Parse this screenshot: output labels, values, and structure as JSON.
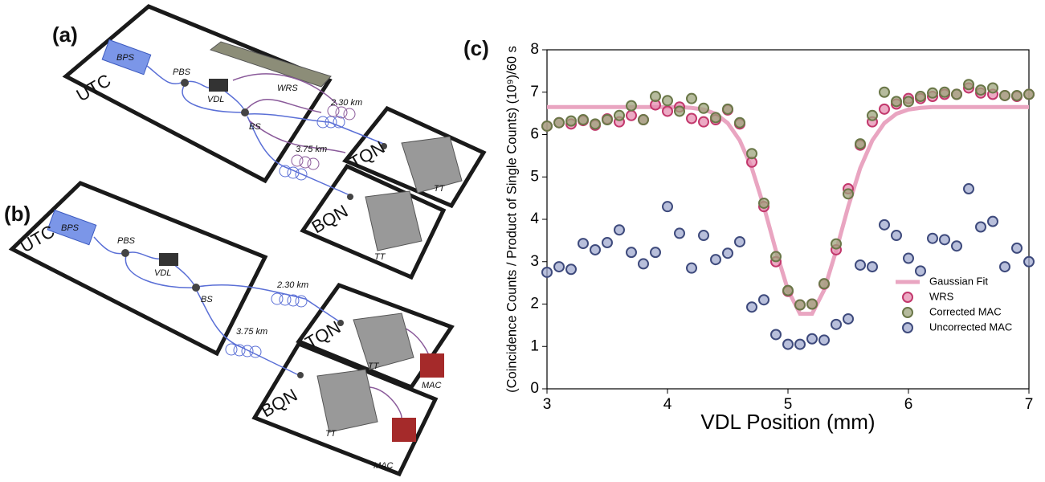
{
  "panel_labels": [
    "(a)",
    "(b)",
    "(c)"
  ],
  "diagram_a": {
    "utc": "UTC",
    "bps": "BPS",
    "pbs": "PBS",
    "vdl": "VDL",
    "bs": "BS",
    "wrs": "WRS",
    "fiber_1": "2.30 km",
    "fiber_2": "3.75 km",
    "tqn": "TQN",
    "bqn": "BQN",
    "tt_1": "TT",
    "tt_2": "TT"
  },
  "diagram_b": {
    "utc": "UTC",
    "bps": "BPS",
    "pbs": "PBS",
    "vdl": "VDL",
    "bs": "BS",
    "fiber_1": "2.30 km",
    "fiber_2": "3.75 km",
    "tqn": "TQN",
    "bqn": "BQN",
    "tt_1": "TT",
    "tt_2": "TT",
    "mac_1": "MAC",
    "mac_2": "MAC"
  },
  "chart_data": {
    "type": "scatter",
    "xlabel": "VDL Position (mm)",
    "ylabel": "(Coincidence Counts / Product of Single Counts) (10⁹)/60 s",
    "xlim": [
      3,
      7
    ],
    "ylim": [
      0,
      8
    ],
    "xticks": [
      3,
      4,
      5,
      6,
      7
    ],
    "yticks": [
      0,
      1,
      2,
      3,
      4,
      5,
      6,
      7,
      8
    ],
    "legend": "lower right",
    "x": [
      3.0,
      3.1,
      3.2,
      3.3,
      3.4,
      3.5,
      3.6,
      3.7,
      3.8,
      3.9,
      4.0,
      4.1,
      4.2,
      4.3,
      4.4,
      4.5,
      4.6,
      4.7,
      4.8,
      4.9,
      5.0,
      5.1,
      5.2,
      5.3,
      5.4,
      5.5,
      5.6,
      5.7,
      5.8,
      5.9,
      6.0,
      6.1,
      6.2,
      6.3,
      6.4,
      6.5,
      6.6,
      6.7,
      6.8,
      6.9,
      7.0
    ],
    "series": [
      {
        "name": "Gaussian Fit",
        "style": "line",
        "color": "#e9a5c1",
        "values": [
          6.65,
          6.65,
          6.65,
          6.65,
          6.65,
          6.65,
          6.65,
          6.65,
          6.65,
          6.65,
          6.65,
          6.65,
          6.63,
          6.59,
          6.49,
          6.27,
          5.86,
          5.21,
          4.3,
          3.26,
          2.33,
          1.77,
          1.77,
          2.33,
          3.26,
          4.3,
          5.21,
          5.86,
          6.27,
          6.49,
          6.59,
          6.63,
          6.65,
          6.65,
          6.65,
          6.65,
          6.65,
          6.65,
          6.65,
          6.65,
          6.65
        ]
      },
      {
        "name": "WRS",
        "style": "marker",
        "color": "#e58db0",
        "edge": "#c2386c",
        "values": [
          6.2,
          6.28,
          6.25,
          6.33,
          6.22,
          6.37,
          6.3,
          6.45,
          6.35,
          6.7,
          6.55,
          6.65,
          6.38,
          6.3,
          6.35,
          6.58,
          6.25,
          5.35,
          4.3,
          3.0,
          2.3,
          1.98,
          2.0,
          2.47,
          3.28,
          4.72,
          5.75,
          6.3,
          6.6,
          6.72,
          6.85,
          6.85,
          6.9,
          6.95,
          6.95,
          7.1,
          6.98,
          6.95,
          6.92,
          6.9,
          6.95
        ]
      },
      {
        "name": "Corrected MAC",
        "style": "marker",
        "color": "#9ea47c",
        "edge": "#6a7748",
        "values": [
          6.2,
          6.28,
          6.32,
          6.35,
          6.25,
          6.35,
          6.45,
          6.68,
          6.35,
          6.9,
          6.8,
          6.55,
          6.85,
          6.62,
          6.4,
          6.6,
          6.28,
          5.55,
          4.38,
          3.12,
          2.32,
          1.98,
          2.0,
          2.48,
          3.42,
          4.6,
          5.78,
          6.45,
          7.0,
          6.78,
          6.78,
          6.9,
          6.98,
          7.0,
          6.95,
          7.18,
          7.05,
          7.1,
          6.92,
          6.92,
          6.95
        ]
      },
      {
        "name": "Uncorrected MAC",
        "style": "marker",
        "color": "#a0a9cf",
        "edge": "#3e4a7c",
        "values": [
          2.75,
          2.88,
          2.82,
          3.43,
          3.28,
          3.45,
          3.75,
          3.22,
          2.95,
          3.22,
          4.3,
          3.67,
          2.85,
          3.62,
          3.05,
          3.2,
          3.47,
          1.93,
          2.1,
          1.28,
          1.05,
          1.05,
          1.18,
          1.15,
          1.52,
          1.65,
          2.92,
          2.88,
          3.87,
          3.62,
          3.08,
          2.78,
          3.55,
          3.52,
          3.37,
          4.72,
          3.82,
          3.95,
          2.88,
          3.32,
          3.0
        ]
      }
    ]
  }
}
